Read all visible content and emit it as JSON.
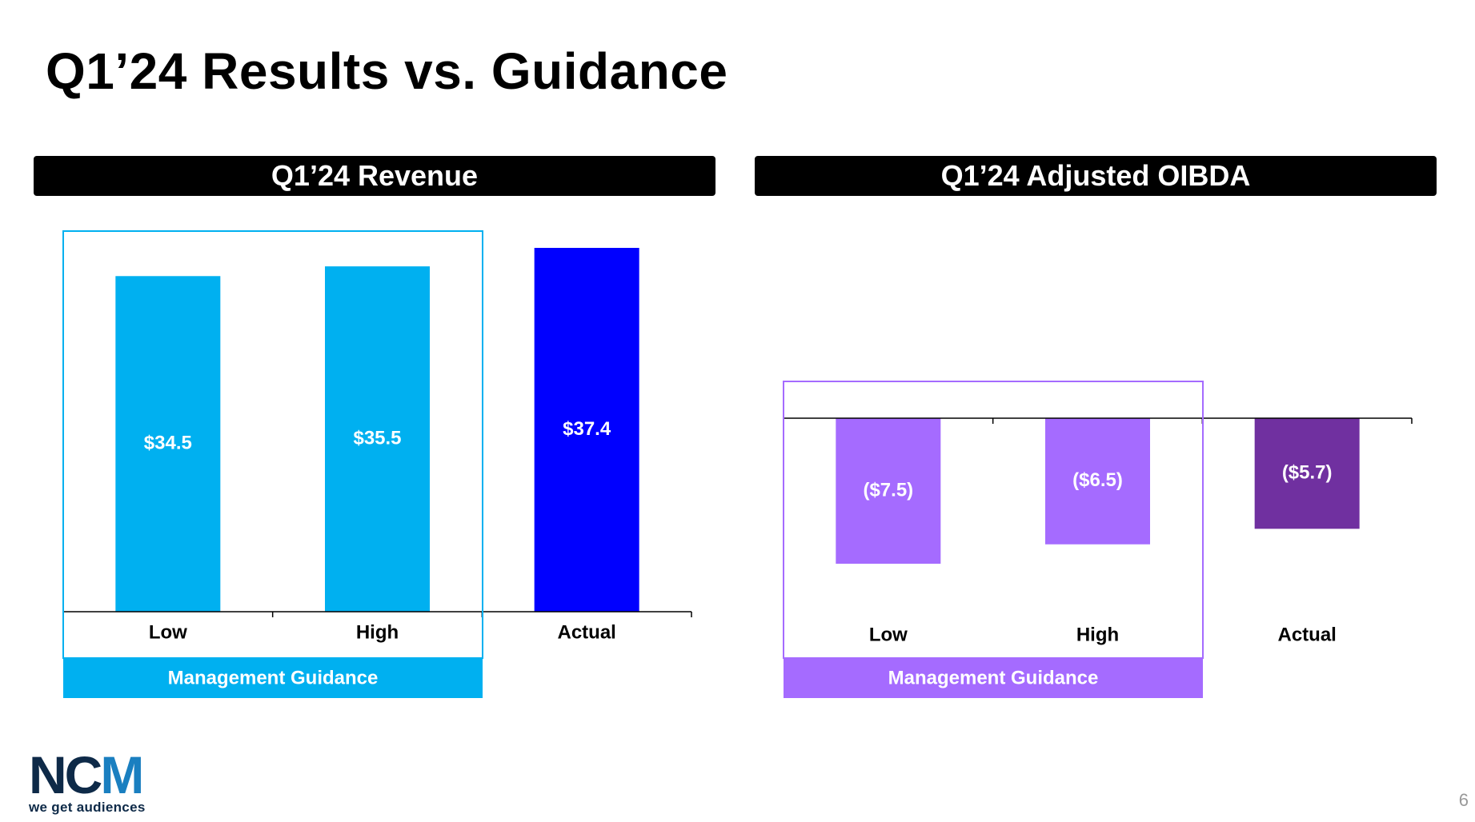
{
  "title": "Q1’24 Results vs. Guidance",
  "page_number": "6",
  "logo": {
    "mark": "NCM",
    "tagline": "we get audiences"
  },
  "colors": {
    "header_bg": "#000000",
    "revenue_guidance": "#00b0f0",
    "revenue_actual": "#0000ff",
    "oibda_guidance": "#a56bff",
    "oibda_actual": "#7030a0"
  },
  "chart_data": [
    {
      "type": "bar",
      "title": "Q1’24 Revenue",
      "categories": [
        "Low",
        "High",
        "Actual"
      ],
      "values": [
        34.5,
        35.5,
        37.4
      ],
      "value_labels": [
        "$34.5",
        "$35.5",
        "$37.4"
      ],
      "bar_colors": [
        "#00b0f0",
        "#00b0f0",
        "#0000ff"
      ],
      "ylim": [
        0,
        37.4
      ],
      "grid": false,
      "group_label": "Management Guidance",
      "group_categories": [
        "Low",
        "High"
      ],
      "group_color": "#00b0f0"
    },
    {
      "type": "bar",
      "title": "Q1’24 Adjusted OIBDA",
      "categories": [
        "Low",
        "High",
        "Actual"
      ],
      "values": [
        -7.5,
        -6.5,
        -5.7
      ],
      "value_labels": [
        "($7.5)",
        "($6.5)",
        "($5.7)"
      ],
      "bar_colors": [
        "#a56bff",
        "#a56bff",
        "#7030a0"
      ],
      "ylim": [
        -7.5,
        0
      ],
      "grid": false,
      "group_label": "Management Guidance",
      "group_categories": [
        "Low",
        "High"
      ],
      "group_color": "#a56bff"
    }
  ]
}
